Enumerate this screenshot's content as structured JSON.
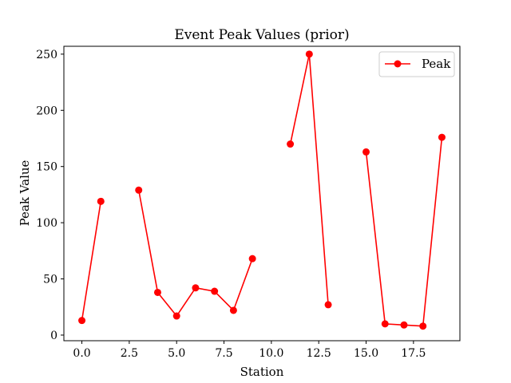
{
  "chart_data": {
    "type": "line",
    "title": "Event Peak Values (prior)",
    "xlabel": "Station",
    "ylabel": "Peak Value",
    "xlim": [
      -0.95,
      19.95
    ],
    "ylim": [
      -5,
      257
    ],
    "x_ticks": [
      0.0,
      2.5,
      5.0,
      7.5,
      10.0,
      12.5,
      15.0,
      17.5
    ],
    "x_tick_labels": [
      "0.0",
      "2.5",
      "5.0",
      "7.5",
      "10.0",
      "12.5",
      "15.0",
      "17.5"
    ],
    "y_ticks": [
      0,
      50,
      100,
      150,
      200,
      250
    ],
    "y_tick_labels": [
      "0",
      "50",
      "100",
      "150",
      "200",
      "250"
    ],
    "grid": false,
    "legend_position": "top-right",
    "series": [
      {
        "name": "Peak",
        "color": "#ff0000",
        "marker": "circle",
        "x": [
          0,
          1,
          2,
          3,
          4,
          5,
          6,
          7,
          8,
          9,
          10,
          11,
          12,
          13,
          14,
          15,
          16,
          17,
          18,
          19
        ],
        "y": [
          13,
          119,
          null,
          129,
          38,
          17,
          42,
          39,
          22,
          68,
          null,
          170,
          250,
          27,
          null,
          163,
          10,
          9,
          8,
          176
        ]
      }
    ]
  }
}
